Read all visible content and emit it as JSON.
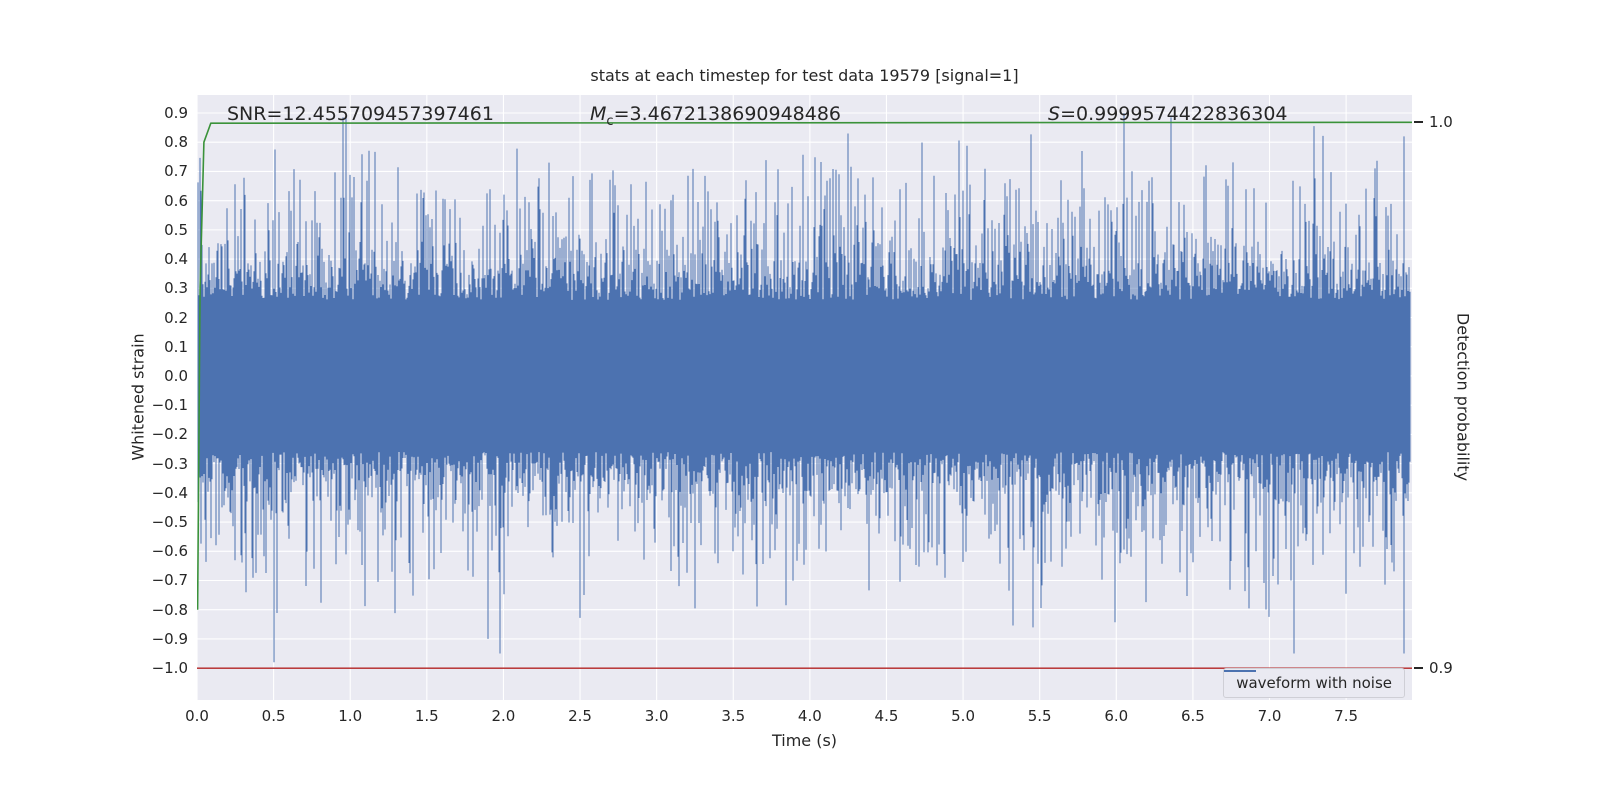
{
  "annotations": {
    "snr": "SNR=12.455709457397461",
    "mc_var": "M",
    "mc_sub": "c",
    "mc_value": "=3.4672138690948486",
    "s_var": "S",
    "s_value": "=0.9999574422836304"
  },
  "legend": {
    "label": "waveform with noise"
  },
  "chart_data": {
    "type": "line",
    "title": "stats at each timestep for test data 19579 [signal=1]",
    "xlabel": "Time (s)",
    "ylabel_left": "Whitened strain",
    "ylabel_right": "Detection probability",
    "xlim": [
      0,
      7.93
    ],
    "ylim_left": [
      -1.109,
      0.9616
    ],
    "grid": true,
    "grid_color": "#ffffff",
    "background": "#eaeaf2",
    "legend_position": "lower right",
    "xtick_values": [
      0.0,
      0.5,
      1.0,
      1.5,
      2.0,
      2.5,
      3.0,
      3.5,
      4.0,
      4.5,
      5.0,
      5.5,
      6.0,
      6.5,
      7.0,
      7.5
    ],
    "xtick_labels": [
      "0.0",
      "0.5",
      "1.0",
      "1.5",
      "2.0",
      "2.5",
      "3.0",
      "3.5",
      "4.0",
      "4.5",
      "5.0",
      "5.5",
      "6.0",
      "6.5",
      "7.0",
      "7.5"
    ],
    "ytick_values": [
      0.9,
      0.8,
      0.7,
      0.6,
      0.5,
      0.4,
      0.3,
      0.2,
      0.1,
      0.0,
      -0.1,
      -0.2,
      -0.3,
      -0.4,
      -0.5,
      -0.6,
      -0.7,
      -0.8,
      -0.9,
      -1.0
    ],
    "ytick_labels": [
      "0.9",
      "0.8",
      "0.7",
      "0.6",
      "0.5",
      "0.4",
      "0.3",
      "0.2",
      "0.1",
      "0.0",
      "−0.1",
      "−0.2",
      "−0.3",
      "−0.4",
      "−0.5",
      "−0.6",
      "−0.7",
      "−0.8",
      "−0.9",
      "−1.0"
    ],
    "yticks_right": [
      {
        "label": "1.0",
        "strain": 0.868
      },
      {
        "label": "0.9",
        "strain": -1.0
      }
    ],
    "stats": {
      "test_data_id": 19579,
      "signal": 1,
      "SNR": 12.455709457397461,
      "Mc": 3.4672138690948486,
      "S": 0.9999574422836304
    },
    "waveform": {
      "name": "waveform with noise",
      "color": "#4c72b0",
      "seed": 19579,
      "base": 0.26,
      "sigma": 0.1,
      "typical_band": [
        -0.45,
        0.45
      ],
      "max_excursion": [
        -0.98,
        0.885
      ],
      "forced_spikes": [
        {
          "t": 0.5,
          "bottom": -0.98
        },
        {
          "t": 1.9,
          "bottom": -0.9
        },
        {
          "t": 0.95,
          "top": 0.885
        },
        {
          "t": 7.88,
          "top": 0.82
        }
      ]
    },
    "detection_probability": {
      "color": "#3a923a",
      "final_value": 1.0,
      "points_t_strain": [
        [
          0.004,
          -0.8
        ],
        [
          0.02,
          0.3
        ],
        [
          0.045,
          0.8
        ],
        [
          0.09,
          0.865
        ],
        [
          7.93,
          0.868
        ]
      ]
    },
    "threshold": {
      "color": "#b22222",
      "strain": -1.0,
      "probability": 0.9
    }
  }
}
